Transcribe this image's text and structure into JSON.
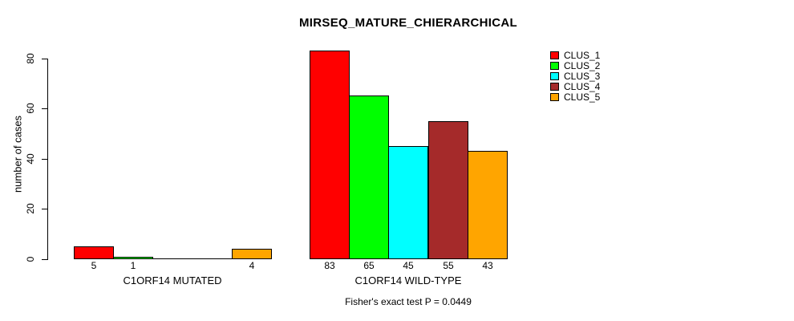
{
  "figure": {
    "background": "#FFFFFF",
    "axis_color": "#000000",
    "bar_outline_color": "#000000"
  },
  "chart_data": {
    "type": "bar",
    "title": "MIRSEQ_MATURE_CHIERARCHICAL",
    "xlabel": "",
    "ylabel": "number of cases",
    "ylim": [
      0,
      80
    ],
    "yticks": [
      0,
      20,
      40,
      60,
      80
    ],
    "grid": false,
    "legend_position": "top-right",
    "categories": [
      "C1ORF14 MUTATED",
      "C1ORF14 WILD-TYPE"
    ],
    "series": [
      {
        "name": "CLUS_1",
        "color": "#FF0000",
        "values": [
          5,
          83
        ]
      },
      {
        "name": "CLUS_2",
        "color": "#00FF00",
        "values": [
          1,
          65
        ]
      },
      {
        "name": "CLUS_3",
        "color": "#00FFFF",
        "values": [
          0,
          45
        ]
      },
      {
        "name": "CLUS_4",
        "color": "#A52A2A",
        "values": [
          0,
          55
        ]
      },
      {
        "name": "CLUS_5",
        "color": "#FFA500",
        "values": [
          4,
          43
        ]
      }
    ],
    "bar_value_labels": [
      "5",
      "1",
      "4",
      "83",
      "65",
      "45",
      "55",
      "43"
    ],
    "hide_zero_value_labels": true,
    "annotation": "Fisher's exact test P = 0.0449"
  }
}
